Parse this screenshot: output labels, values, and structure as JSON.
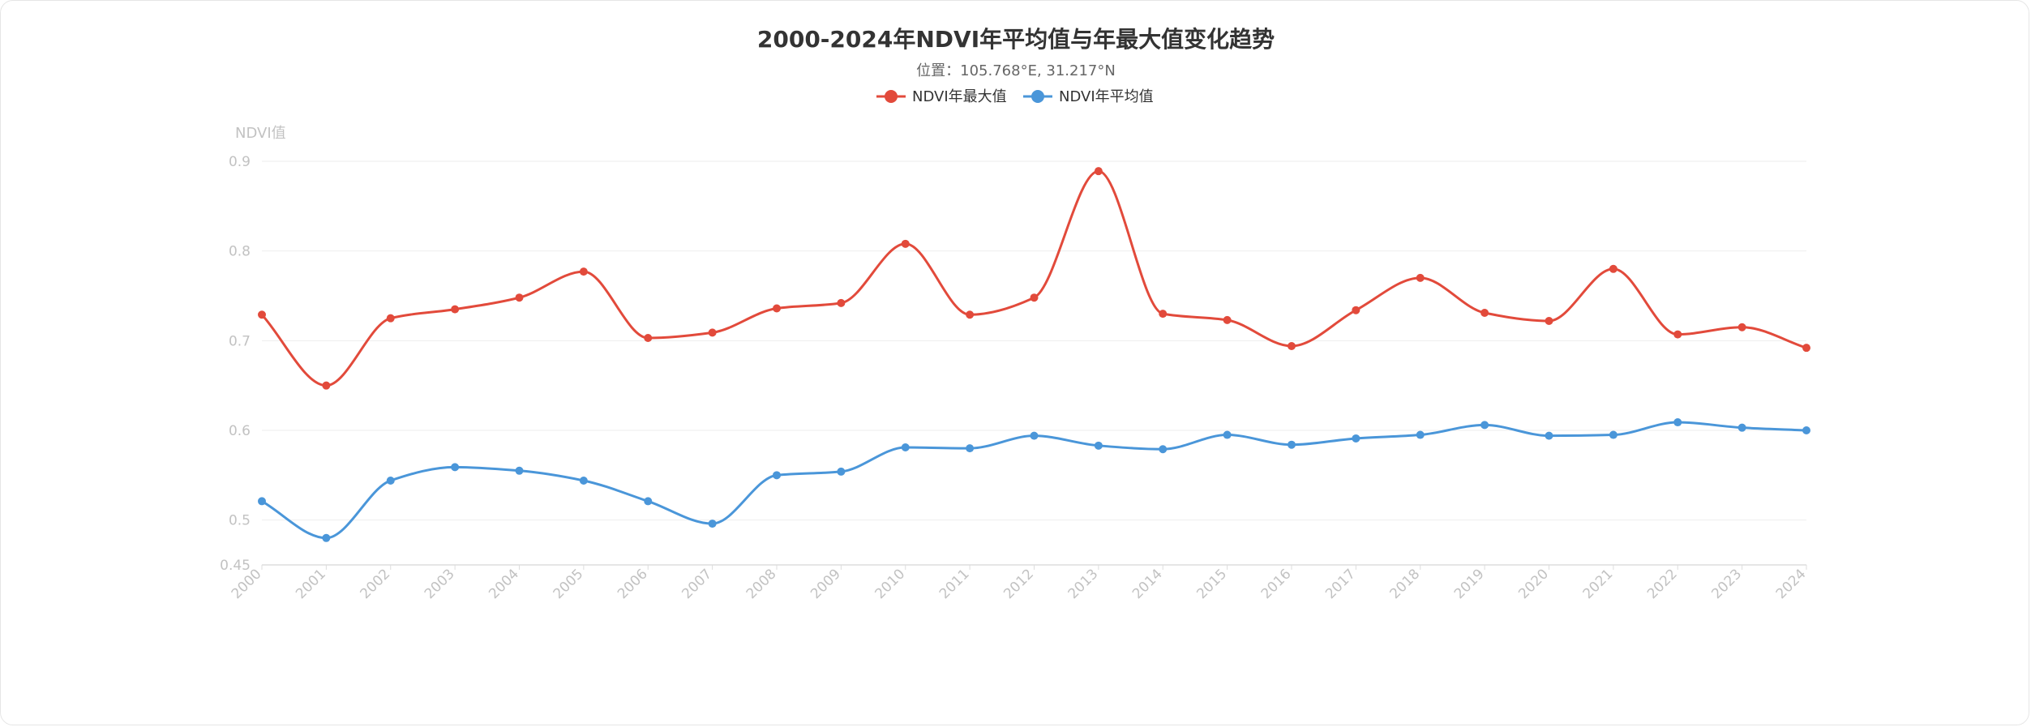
{
  "chart": {
    "title": "2000-2024年NDVI年平均值与年最大值变化趋势",
    "subtitle": "位置：105.768°E, 31.217°N",
    "legend": [
      {
        "name": "NDVI年最大值",
        "color": "#e24a3b"
      },
      {
        "name": "NDVI年平均值",
        "color": "#4a96d9"
      }
    ]
  },
  "chart_data": {
    "type": "line",
    "title": "2000-2024年NDVI年平均值与年最大值变化趋势",
    "subtitle": "位置：105.768°E, 31.217°N",
    "xlabel": "",
    "ylabel": "NDVI值",
    "categories": [
      "2000",
      "2001",
      "2002",
      "2003",
      "2004",
      "2005",
      "2006",
      "2007",
      "2008",
      "2009",
      "2010",
      "2011",
      "2012",
      "2013",
      "2014",
      "2015",
      "2016",
      "2017",
      "2018",
      "2019",
      "2020",
      "2021",
      "2022",
      "2023",
      "2024"
    ],
    "series": [
      {
        "name": "NDVI年最大值",
        "color": "#e24a3b",
        "values": [
          0.729,
          0.65,
          0.725,
          0.735,
          0.748,
          0.777,
          0.703,
          0.709,
          0.736,
          0.742,
          0.808,
          0.729,
          0.748,
          0.889,
          0.73,
          0.723,
          0.694,
          0.734,
          0.77,
          0.731,
          0.722,
          0.78,
          0.707,
          0.715,
          0.692
        ]
      },
      {
        "name": "NDVI年平均值",
        "color": "#4a96d9",
        "values": [
          0.521,
          0.48,
          0.544,
          0.559,
          0.555,
          0.544,
          0.521,
          0.496,
          0.55,
          0.554,
          0.581,
          0.58,
          0.594,
          0.583,
          0.579,
          0.595,
          0.584,
          0.591,
          0.595,
          0.606,
          0.594,
          0.595,
          0.609,
          0.603,
          0.6
        ]
      }
    ],
    "ylim": [
      0.45,
      0.9
    ],
    "yticks": [
      "0.45",
      "0.5",
      "0.6",
      "0.7",
      "0.8",
      "0.9"
    ],
    "smooth": true,
    "grid": true,
    "legend_position": "top-center"
  }
}
